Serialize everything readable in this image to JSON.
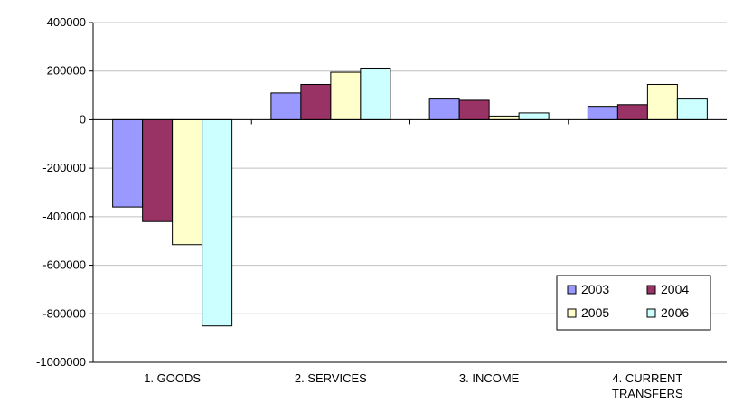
{
  "chart_data": {
    "type": "bar",
    "title": "",
    "xlabel": "",
    "ylabel": "",
    "categories": [
      "1. GOODS",
      "2. SERVICES",
      "3. INCOME",
      "4. CURRENT TRANSFERS"
    ],
    "category_lines": [
      [
        "1. GOODS"
      ],
      [
        "2. SERVICES"
      ],
      [
        "3. INCOME"
      ],
      [
        "4. CURRENT",
        "TRANSFERS"
      ]
    ],
    "ylim": [
      -1000000,
      400000
    ],
    "yticks": [
      400000,
      200000,
      0,
      -200000,
      -400000,
      -600000,
      -800000,
      -1000000
    ],
    "ytick_labels": [
      "400000",
      "200000",
      "0",
      "-200000",
      "-400000",
      "-600000",
      "-800000",
      "-1000000"
    ],
    "grid": true,
    "legend_position": "bottom-right",
    "series": [
      {
        "name": "2003",
        "color": "#9999ff",
        "values": [
          -360000,
          110000,
          85000,
          55000
        ]
      },
      {
        "name": "2004",
        "color": "#993366",
        "values": [
          -420000,
          145000,
          80000,
          62000
        ]
      },
      {
        "name": "2005",
        "color": "#ffffcc",
        "values": [
          -515000,
          195000,
          15000,
          145000
        ]
      },
      {
        "name": "2006",
        "color": "#ccffff",
        "values": [
          -850000,
          212000,
          28000,
          85000
        ]
      }
    ]
  }
}
